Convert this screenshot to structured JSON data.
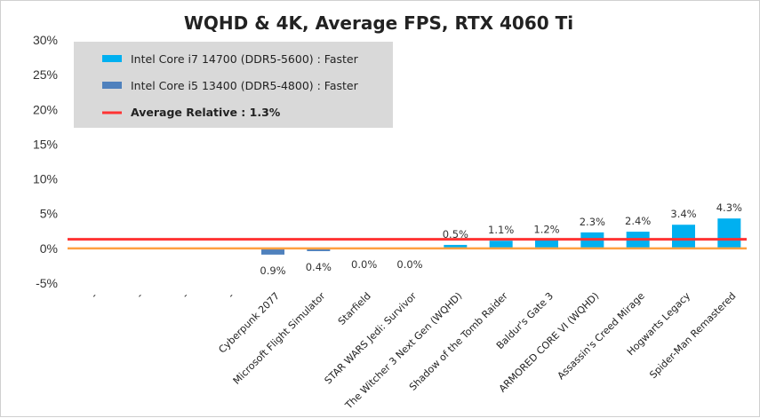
{
  "chart_data": {
    "type": "bar",
    "title": "WQHD & 4K, Average FPS, RTX 4060 Ti",
    "xlabel": "",
    "ylabel": "",
    "ylim": [
      -5,
      30
    ],
    "yticks": [
      -5,
      0,
      5,
      10,
      15,
      20,
      25,
      30
    ],
    "ytick_suffix": "%",
    "grid": false,
    "legend_position": "top-left",
    "categories": [
      "-",
      "-",
      "-",
      "-",
      "Cyberpunk 2077",
      "Microsoft Flight Simulator",
      "Starfield",
      "STAR WARS Jedi: Survivor",
      "The Witcher 3 Next Gen (WQHD)",
      "Shadow of the Tomb Raider",
      "Baldur's Gate 3",
      "ARMORED CORE VI (WQHD)",
      "Assassin's Creed Mirage",
      "Hogwarts Legacy",
      "Spider-Man Remastered"
    ],
    "series": [
      {
        "name": "Intel Core i7 14700 (DDR5-5600) : Faster",
        "color": "#00b0f0",
        "values": [
          null,
          null,
          null,
          null,
          null,
          null,
          0.0,
          0.0,
          0.5,
          1.1,
          1.2,
          2.3,
          2.4,
          3.4,
          4.3
        ]
      },
      {
        "name": "Intel Core i5 13400 (DDR5-4800) : Faster",
        "color": "#4f81bd",
        "values": [
          null,
          null,
          null,
          null,
          -0.9,
          -0.4,
          null,
          null,
          null,
          null,
          null,
          null,
          null,
          null,
          null
        ]
      }
    ],
    "data_labels": [
      "",
      "",
      "",
      "",
      "0.9%",
      "0.4%",
      "0.0%",
      "0.0%",
      "0.5%",
      "1.1%",
      "1.2%",
      "2.3%",
      "2.4%",
      "3.4%",
      "4.3%"
    ],
    "reference_lines": [
      {
        "name": "Average Relative : 1.3%",
        "value": 1.3,
        "color": "#ff3333"
      },
      {
        "value": 0,
        "color": "#ffa040"
      }
    ]
  }
}
